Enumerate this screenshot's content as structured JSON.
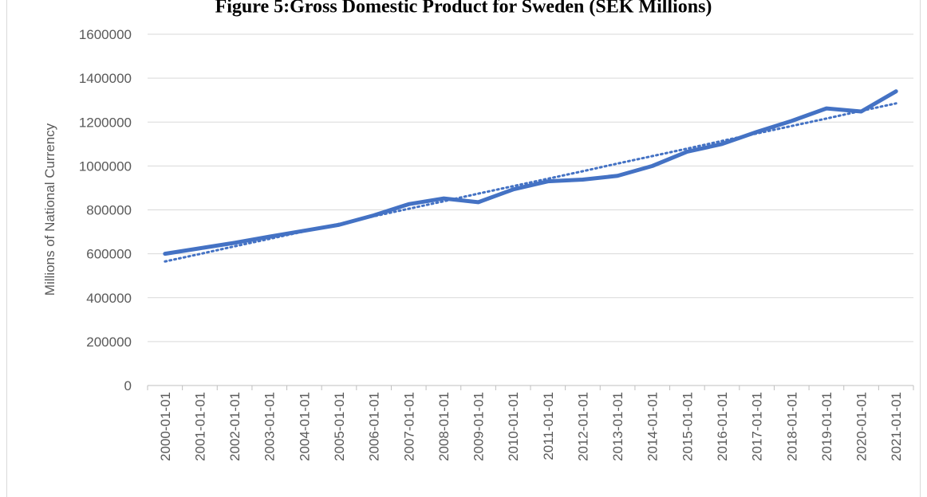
{
  "chart_data": {
    "type": "line",
    "title": "Figure 5:Gross Domestic Product for Sweden (SEK Millions)",
    "y_label": "Millions of National Currency",
    "categories": [
      "2000-01-01",
      "2001-01-01",
      "2002-01-01",
      "2003-01-01",
      "2004-01-01",
      "2005-01-01",
      "2006-01-01",
      "2007-01-01",
      "2008-01-01",
      "2009-01-01",
      "2010-01-01",
      "2011-01-01",
      "2012-01-01",
      "2013-01-01",
      "2014-01-01",
      "2015-01-01",
      "2016-01-01",
      "2017-01-01",
      "2018-01-01",
      "2019-01-01",
      "2020-01-01",
      "2021-01-01"
    ],
    "series": [
      {
        "color": "#4472c4",
        "values": [
          600000,
          625000,
          650000,
          678000,
          705000,
          732000,
          775000,
          826000,
          852000,
          835000,
          893000,
          930000,
          938000,
          955000,
          1000000,
          1065000,
          1100000,
          1155000,
          1205000,
          1262000,
          1248000,
          1340000
        ]
      },
      {
        "color": "#4472c4",
        "dash": "dotted",
        "values": [
          565000,
          599000,
          634000,
          668000,
          702000,
          736000,
          771000,
          805000,
          839000,
          874000,
          908000,
          942000,
          976000,
          1011000,
          1045000,
          1079000,
          1114000,
          1148000,
          1182000,
          1216000,
          1251000,
          1285000
        ]
      }
    ],
    "ylim": [
      0,
      1600000
    ],
    "yticks": [
      0,
      200000,
      400000,
      600000,
      800000,
      1000000,
      1200000,
      1400000,
      1600000
    ],
    "grid": true
  }
}
